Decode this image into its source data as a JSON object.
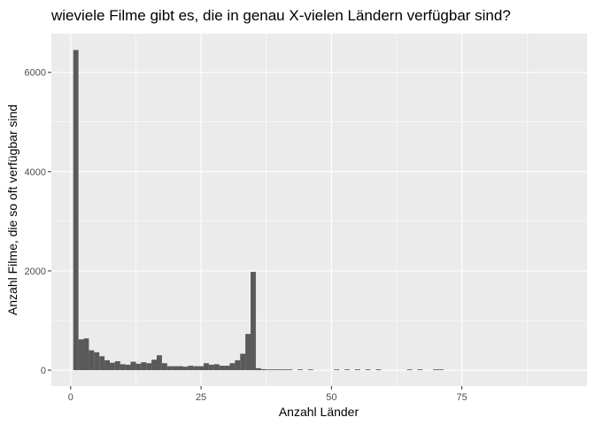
{
  "chart_data": {
    "type": "bar",
    "title": "wieviele Filme gibt es, die in genau X-vielen Ländern verfügbar sind?",
    "xlabel": "Anzahl Länder",
    "ylabel": "Anzahl Filme, die so oft verfügbar sind",
    "xlim": [
      -3.7,
      99
    ],
    "ylim": [
      -320,
      6780
    ],
    "x_ticks": [
      0,
      25,
      50,
      75
    ],
    "x_tick_labels": [
      "0",
      "25",
      "50",
      "75"
    ],
    "y_ticks": [
      0,
      2000,
      4000,
      6000
    ],
    "y_tick_labels": [
      "0",
      "2000",
      "4000",
      "6000"
    ],
    "grid": true,
    "bar_color": "#595959",
    "panel_background": "#ebebeb",
    "gridline_color": "#ffffff",
    "x": [
      1,
      2,
      3,
      4,
      5,
      6,
      7,
      8,
      9,
      10,
      11,
      12,
      13,
      14,
      15,
      16,
      17,
      18,
      19,
      20,
      21,
      22,
      23,
      24,
      25,
      26,
      27,
      28,
      29,
      30,
      31,
      32,
      33,
      34,
      35,
      36,
      37,
      38,
      39,
      40,
      41,
      42,
      44,
      46,
      51,
      53,
      55,
      57,
      59,
      65,
      67,
      70,
      71
    ],
    "values": [
      6450,
      620,
      640,
      400,
      360,
      280,
      200,
      150,
      180,
      120,
      110,
      170,
      130,
      160,
      140,
      210,
      300,
      140,
      80,
      80,
      80,
      70,
      90,
      80,
      80,
      140,
      110,
      120,
      90,
      90,
      140,
      200,
      330,
      730,
      1980,
      40,
      20,
      15,
      15,
      15,
      15,
      15,
      15,
      15,
      15,
      15,
      15,
      15,
      15,
      15,
      15,
      15,
      15
    ],
    "bin_width": 1
  }
}
